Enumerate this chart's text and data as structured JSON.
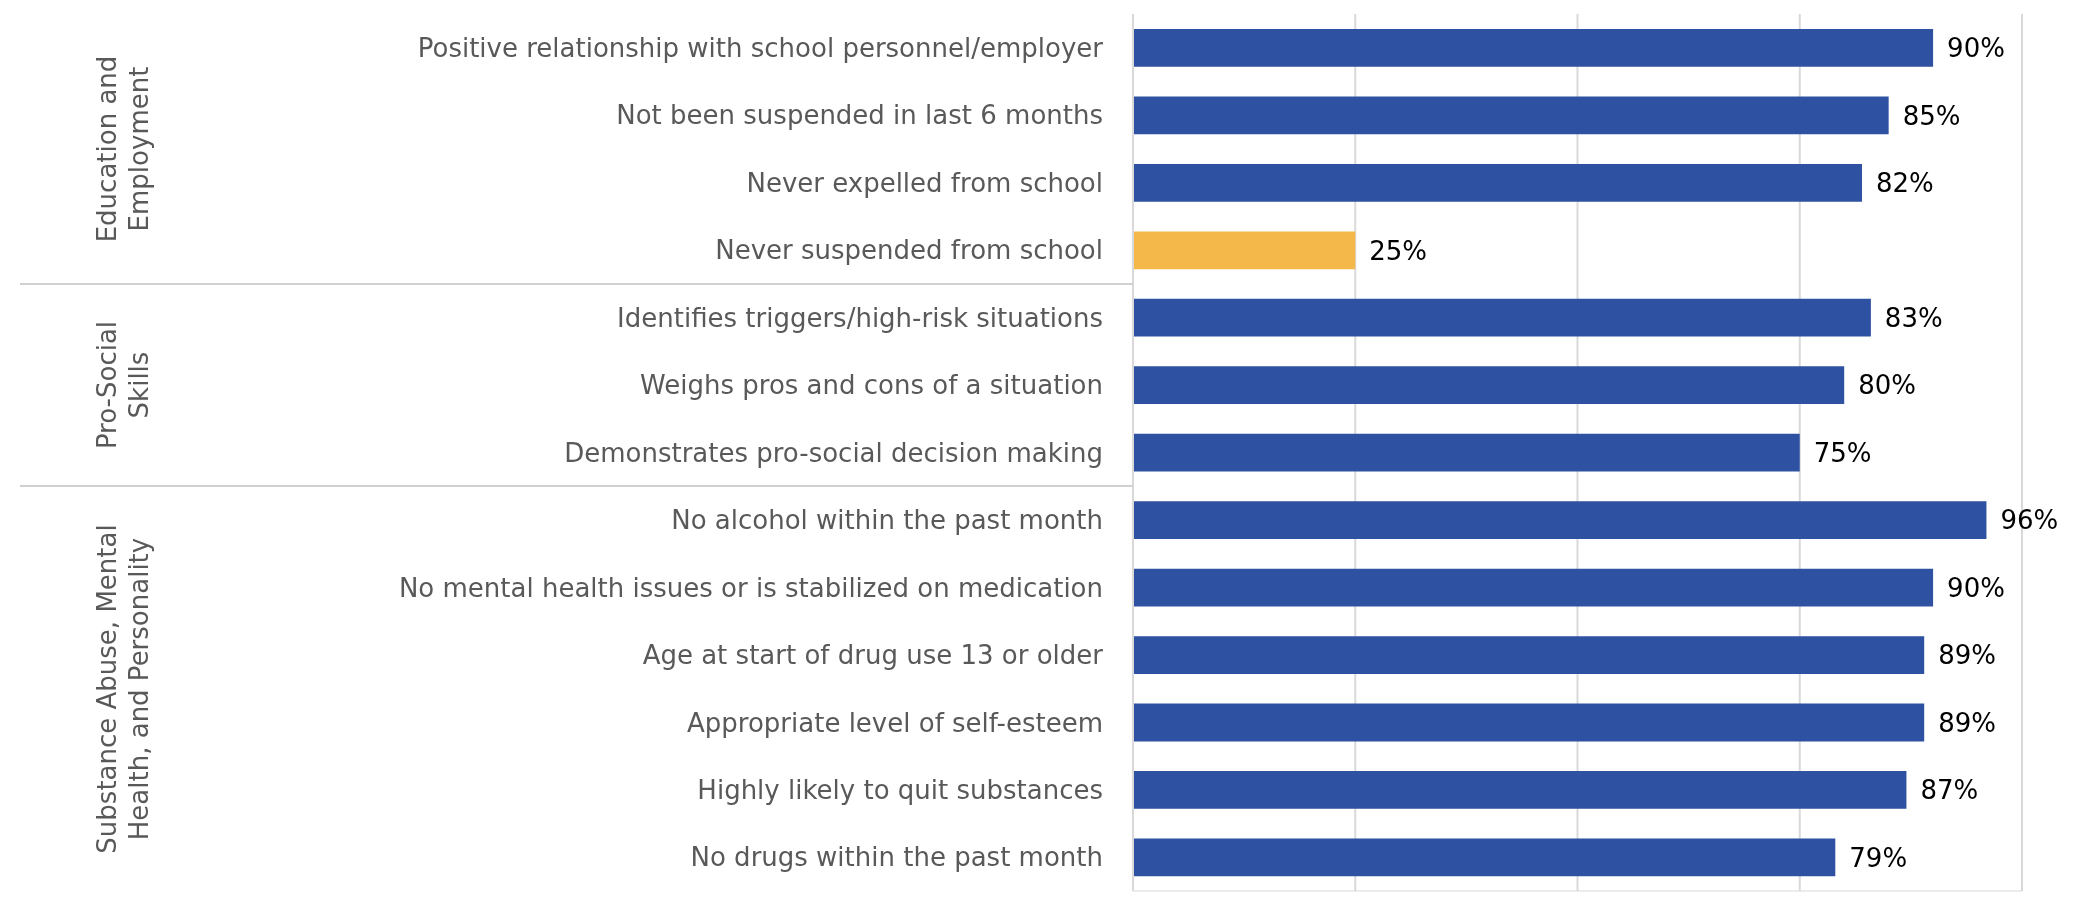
{
  "chart_data": {
    "type": "bar",
    "orientation": "horizontal",
    "categories": [
      "Positive relationship with school personnel/employer",
      "Not been suspended in last 6 months",
      "Never expelled from school",
      "Never suspended from school",
      "Identifies triggers/high-risk situations",
      "Weighs pros and cons of a situation",
      "Demonstrates pro-social decision making",
      "No alcohol within the past month",
      "No mental health issues or is stabilized on medication",
      "Age at start of drug use 13 or older",
      "Appropriate level of self-esteem",
      "Highly likely to quit substances",
      "No drugs within the past month"
    ],
    "values": [
      90,
      85,
      82,
      25,
      83,
      80,
      75,
      96,
      90,
      89,
      89,
      87,
      79
    ],
    "value_labels": [
      "90%",
      "85%",
      "82%",
      "25%",
      "83%",
      "80%",
      "75%",
      "96%",
      "90%",
      "89%",
      "89%",
      "87%",
      "79%"
    ],
    "colors": [
      "#2e51a2",
      "#2e51a2",
      "#2e51a2",
      "#f4b84a",
      "#2e51a2",
      "#2e51a2",
      "#2e51a2",
      "#2e51a2",
      "#2e51a2",
      "#2e51a2",
      "#2e51a2",
      "#2e51a2",
      "#2e51a2"
    ],
    "xlim": [
      0,
      100
    ],
    "xticks": [
      {
        "value": 0,
        "label": null
      },
      {
        "value": 25,
        "label": null
      },
      {
        "value": 50,
        "label": null
      },
      {
        "value": 75,
        "label": null
      },
      {
        "value": 100,
        "label": null
      }
    ],
    "tick_labels": "y",
    "grid": "x",
    "annotations": [
      "Education and Employment",
      "Pro-Social Skills",
      "Substance Abuse, Mental Health, and Personality"
    ]
  }
}
